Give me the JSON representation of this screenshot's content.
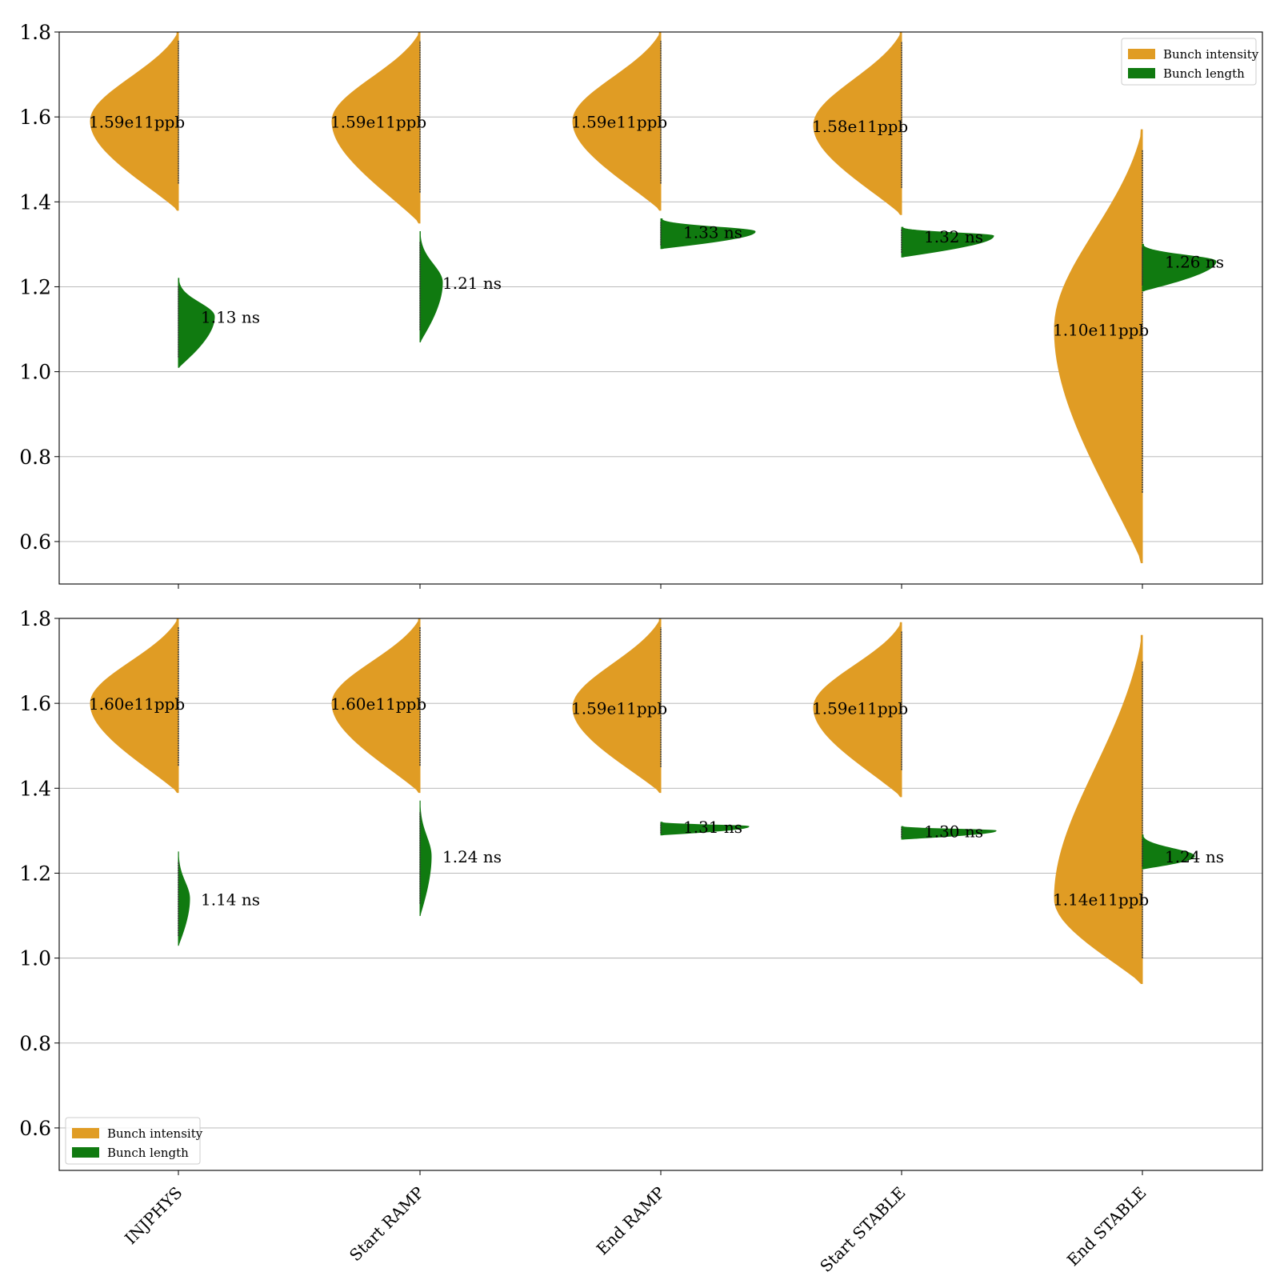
{
  "colors": {
    "intensity": "#E09C24",
    "length": "#107A10",
    "grid": "#b0b0b0",
    "spine": "#222222"
  },
  "chart_data": [
    {
      "type": "violin",
      "categories": [
        "INJPHYS",
        "Start RAMP",
        "End RAMP",
        "Start STABLE",
        "End STABLE"
      ],
      "ylim": [
        0.5,
        1.8
      ],
      "yticks": [
        "0.6",
        "0.8",
        "1.0",
        "1.2",
        "1.4",
        "1.6",
        "1.8"
      ],
      "grid": "horizontal",
      "legend_position": "top-right",
      "series": [
        {
          "name": "Bunch intensity",
          "side": "left",
          "medians": [
            1.59,
            1.59,
            1.59,
            1.58,
            1.1
          ],
          "labels": [
            "1.59e11ppb",
            "1.59e11ppb",
            "1.59e11ppb",
            "1.58e11ppb",
            "1.10e11ppb"
          ],
          "ranges": [
            [
              1.38,
              1.8
            ],
            [
              1.35,
              1.8
            ],
            [
              1.38,
              1.8
            ],
            [
              1.37,
              1.8
            ],
            [
              0.55,
              1.57
            ]
          ]
        },
        {
          "name": "Bunch length",
          "side": "right",
          "medians": [
            1.13,
            1.21,
            1.33,
            1.32,
            1.26
          ],
          "labels": [
            "1.13 ns",
            "1.21 ns",
            "1.33 ns",
            "1.32 ns",
            "1.26 ns"
          ],
          "ranges": [
            [
              1.01,
              1.22
            ],
            [
              1.07,
              1.33
            ],
            [
              1.29,
              1.36
            ],
            [
              1.27,
              1.34
            ],
            [
              1.19,
              1.3
            ]
          ]
        }
      ]
    },
    {
      "type": "violin",
      "categories": [
        "INJPHYS",
        "Start RAMP",
        "End RAMP",
        "Start STABLE",
        "End STABLE"
      ],
      "ylim": [
        0.5,
        1.8
      ],
      "yticks": [
        "0.6",
        "0.8",
        "1.0",
        "1.2",
        "1.4",
        "1.6",
        "1.8"
      ],
      "grid": "horizontal",
      "legend_position": "bottom-left",
      "series": [
        {
          "name": "Bunch intensity",
          "side": "left",
          "medians": [
            1.6,
            1.6,
            1.59,
            1.59,
            1.14
          ],
          "labels": [
            "1.60e11ppb",
            "1.60e11ppb",
            "1.59e11ppb",
            "1.59e11ppb",
            "1.14e11ppb"
          ],
          "ranges": [
            [
              1.39,
              1.8
            ],
            [
              1.39,
              1.8
            ],
            [
              1.39,
              1.8
            ],
            [
              1.38,
              1.79
            ],
            [
              0.94,
              1.76
            ]
          ]
        },
        {
          "name": "Bunch length",
          "side": "right",
          "medians": [
            1.14,
            1.24,
            1.31,
            1.3,
            1.24
          ],
          "labels": [
            "1.14 ns",
            "1.24 ns",
            "1.31 ns",
            "1.30 ns",
            "1.24 ns"
          ],
          "ranges": [
            [
              1.03,
              1.25
            ],
            [
              1.1,
              1.37
            ],
            [
              1.29,
              1.32
            ],
            [
              1.28,
              1.31
            ],
            [
              1.21,
              1.29
            ]
          ]
        }
      ]
    }
  ]
}
